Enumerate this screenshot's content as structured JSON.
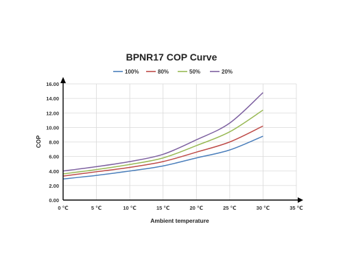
{
  "chart_data": {
    "type": "line",
    "title": "BPNR17 COP Curve",
    "xlabel": "Ambient temperature",
    "ylabel": "COP",
    "x": [
      0,
      5,
      10,
      15,
      20,
      25,
      30
    ],
    "xticks": [
      "0 ℃",
      "5 ℃",
      "10 ℃",
      "15 ℃",
      "20 ℃",
      "25 ℃",
      "30 ℃",
      "35 ℃"
    ],
    "xlim": [
      0,
      35
    ],
    "yticks": [
      "0.00",
      "2.00",
      "4.00",
      "6.00",
      "8.00",
      "10.00",
      "12.00",
      "14.00",
      "16.00"
    ],
    "ylim": [
      0,
      16
    ],
    "grid": true,
    "legend": "top",
    "series": [
      {
        "name": "100%",
        "color": "#4a7ebb",
        "values": [
          2.9,
          3.4,
          4.0,
          4.7,
          5.8,
          6.9,
          8.8
        ]
      },
      {
        "name": "80%",
        "color": "#be4b48",
        "values": [
          3.3,
          3.9,
          4.5,
          5.3,
          6.6,
          8.0,
          10.2
        ]
      },
      {
        "name": "50%",
        "color": "#98b954",
        "values": [
          3.6,
          4.2,
          4.9,
          5.8,
          7.5,
          9.4,
          12.4
        ]
      },
      {
        "name": "20%",
        "color": "#7d60a0",
        "values": [
          4.0,
          4.6,
          5.3,
          6.3,
          8.3,
          10.6,
          14.8
        ]
      }
    ]
  }
}
